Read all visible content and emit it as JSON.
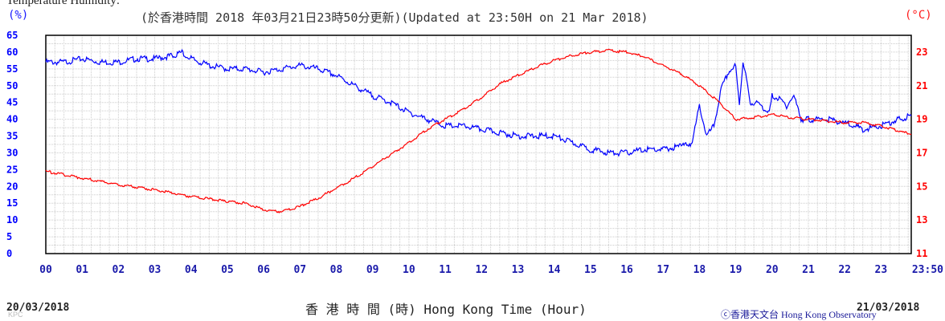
{
  "header": {
    "top_label": "Temperature Humidity:",
    "updated": "(於香港時間 2018 年03月21日23時50分更新)(Updated at 23:50H on 21 Mar 2018)"
  },
  "footer": {
    "x_title": "香 港 時 間 (時)  Hong Kong Time (Hour)",
    "date_start": "20/03/2018",
    "date_end": "21/03/2018",
    "copyright": "ⓒ香港天文台 Hong Kong Observatory",
    "watermark": "KPC"
  },
  "chart_data": {
    "type": "line",
    "title": "",
    "x_unit_label": "",
    "x_ticks": [
      "00",
      "01",
      "02",
      "03",
      "04",
      "05",
      "06",
      "07",
      "08",
      "09",
      "10",
      "11",
      "12",
      "13",
      "14",
      "15",
      "16",
      "17",
      "18",
      "19",
      "20",
      "21",
      "22",
      "23",
      "23:50"
    ],
    "xlim": [
      0,
      23.8333
    ],
    "y_left": {
      "unit": "(%)",
      "ylim": [
        0,
        65
      ],
      "ticks": [
        0,
        5,
        10,
        15,
        20,
        25,
        30,
        35,
        40,
        45,
        50,
        55,
        60,
        65
      ],
      "color": "#0000ff"
    },
    "y_right": {
      "unit": "(°C)",
      "ylim": [
        11,
        24
      ],
      "ticks": [
        11,
        13,
        15,
        17,
        19,
        21,
        23
      ],
      "color": "#ff0000"
    },
    "grid": true,
    "series": [
      {
        "name": "",
        "axis": "left",
        "color": "#0000ff",
        "x": [
          0,
          0.5,
          1,
          1.5,
          2,
          2.5,
          3,
          3.5,
          3.75,
          4,
          4.5,
          5,
          5.5,
          6,
          6.5,
          7,
          7.5,
          8,
          8.5,
          9,
          9.5,
          10,
          10.5,
          11,
          11.5,
          12,
          12.5,
          13,
          13.5,
          14,
          14.5,
          15,
          15.5,
          16,
          16.5,
          17,
          17.5,
          17.8,
          18,
          18.2,
          18.4,
          18.6,
          18.8,
          19,
          19.1,
          19.2,
          19.3,
          19.4,
          19.5,
          19.7,
          19.9,
          20,
          20.2,
          20.4,
          20.6,
          20.8,
          21,
          21.5,
          22,
          22.5,
          23,
          23.5,
          23.8333
        ],
        "values": [
          57,
          57,
          58,
          57,
          57,
          58,
          58,
          59,
          60,
          58,
          56,
          55,
          55,
          54,
          55,
          56,
          55,
          53,
          50,
          47,
          45,
          42,
          40,
          38,
          38,
          37,
          36,
          35,
          35,
          35,
          33,
          31,
          30,
          30,
          31,
          31,
          32,
          33,
          44,
          35,
          38,
          49,
          54,
          56,
          45,
          56,
          52,
          45,
          45,
          44,
          42,
          47,
          46,
          44,
          47,
          40,
          40,
          40,
          39,
          37,
          38,
          40,
          41
        ]
      },
      {
        "name": "",
        "axis": "right",
        "color": "#ff0000",
        "x": [
          0,
          1,
          2,
          3,
          4,
          5,
          5.5,
          6,
          6.5,
          7,
          7.5,
          8,
          8.5,
          9,
          9.5,
          10,
          10.5,
          11,
          11.5,
          12,
          12.5,
          13,
          13.5,
          14,
          14.5,
          15,
          15.5,
          16,
          16.5,
          17,
          17.5,
          18,
          18.5,
          19,
          19.5,
          20,
          20.5,
          21,
          21.5,
          22,
          22.5,
          23,
          23.5,
          23.8333
        ],
        "values": [
          15.9,
          15.5,
          15.1,
          14.8,
          14.4,
          14.1,
          14.0,
          13.6,
          13.5,
          13.8,
          14.3,
          14.9,
          15.5,
          16.2,
          16.9,
          17.6,
          18.4,
          19.0,
          19.6,
          20.3,
          21.1,
          21.6,
          22.1,
          22.5,
          22.8,
          23.0,
          23.1,
          23.0,
          22.7,
          22.2,
          21.7,
          21.0,
          20.1,
          19.0,
          19.1,
          19.3,
          19.1,
          19.0,
          18.9,
          18.8,
          18.8,
          18.6,
          18.3,
          18.1
        ]
      }
    ]
  }
}
